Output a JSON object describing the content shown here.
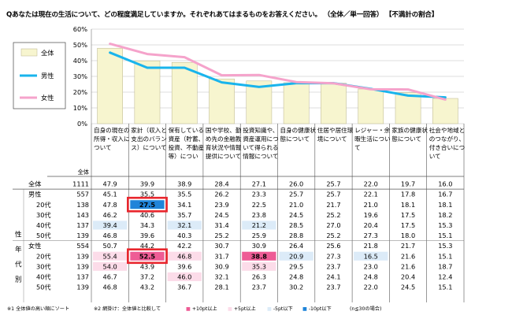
{
  "title": "Qあなたは現在の生活について、どの程度満足していますか。それぞれあてはまるものをお答えください。 （全体／単一回答） 【不満計の割合】",
  "chart_data": {
    "type": "line",
    "title": "",
    "ylim": [
      0,
      60
    ],
    "y_ticks": [
      "0%",
      "10%",
      "20%",
      "30%",
      "40%",
      "50%",
      "60%"
    ],
    "grid": true,
    "legend_position": "top-left",
    "categories": [
      "自身の現在の所得・収入について",
      "家計（収入と支出のバランス）について",
      "保有している資産（貯蓄、投資、不動産等）につい",
      "国や学校、勤め先の金融教育状況や情報提供について",
      "投資知識や、資産運用について得られる情報について",
      "自身の健康状態について",
      "住居や居住環境について",
      "レジャー・余暇生活について",
      "家族の健康状態について",
      "社会や地域とのつながり、付き合いについて"
    ],
    "series": [
      {
        "name": "全体",
        "kind": "bar",
        "color": "#f7f5cf",
        "values": [
          47.9,
          39.9,
          38.9,
          28.4,
          27.1,
          26.0,
          25.7,
          22.0,
          19.7,
          16.0
        ]
      },
      {
        "name": "男性",
        "kind": "line",
        "color": "#19b4ec",
        "values": [
          45.1,
          35.5,
          35.5,
          26.2,
          23.3,
          25.7,
          25.7,
          22.1,
          17.8,
          16.7
        ]
      },
      {
        "name": "女性",
        "kind": "line",
        "color": "#f5a3cb",
        "values": [
          50.7,
          44.2,
          42.2,
          30.7,
          30.9,
          26.4,
          25.6,
          21.8,
          21.7,
          15.3
        ]
      }
    ],
    "table": {
      "n_label": "全体",
      "group_labels": [
        "性",
        "年",
        "代",
        "別"
      ],
      "rows": [
        {
          "label": "全体",
          "sub": "",
          "n": 1111,
          "values": [
            47.9,
            39.9,
            38.9,
            28.4,
            27.1,
            26.0,
            25.7,
            22.0,
            19.7,
            16.0
          ],
          "marks": [
            "",
            "",
            "",
            "",
            "",
            "",
            "",
            "",
            "",
            ""
          ]
        },
        {
          "label": "男性",
          "sub": "",
          "n": 557,
          "values": [
            45.1,
            35.5,
            35.5,
            26.2,
            23.3,
            25.7,
            25.7,
            22.1,
            17.8,
            16.7
          ],
          "marks": [
            "",
            "",
            "",
            "",
            "",
            "",
            "",
            "",
            "",
            ""
          ]
        },
        {
          "label": "",
          "sub": "20代",
          "n": 138,
          "values": [
            47.8,
            27.5,
            34.1,
            23.9,
            22.5,
            21.0,
            21.7,
            21.0,
            18.1,
            18.1
          ],
          "marks": [
            "",
            "b10",
            "",
            "",
            "",
            "",
            "",
            "",
            "",
            ""
          ]
        },
        {
          "label": "",
          "sub": "30代",
          "n": 143,
          "values": [
            46.2,
            40.6,
            35.7,
            24.5,
            23.8,
            24.5,
            25.2,
            19.6,
            17.5,
            18.2
          ],
          "marks": [
            "",
            "",
            "",
            "",
            "",
            "",
            "",
            "",
            "",
            ""
          ]
        },
        {
          "label": "",
          "sub": "40代",
          "n": 137,
          "values": [
            39.4,
            34.3,
            32.1,
            31.4,
            21.2,
            28.5,
            27.0,
            20.4,
            17.5,
            15.3
          ],
          "marks": [
            "b5",
            "",
            "b5",
            "",
            "b5",
            "",
            "",
            "",
            "",
            ""
          ]
        },
        {
          "label": "",
          "sub": "50代",
          "n": 139,
          "values": [
            46.8,
            39.6,
            40.3,
            25.2,
            25.9,
            28.8,
            25.2,
            27.3,
            18.0,
            15.1
          ],
          "marks": [
            "",
            "",
            "",
            "",
            "",
            "",
            "",
            "",
            "",
            ""
          ]
        },
        {
          "label": "女性",
          "sub": "",
          "n": 554,
          "values": [
            50.7,
            44.2,
            42.2,
            30.7,
            30.9,
            26.4,
            25.6,
            21.8,
            21.7,
            15.3
          ],
          "marks": [
            "",
            "",
            "",
            "",
            "",
            "",
            "",
            "",
            "",
            ""
          ]
        },
        {
          "label": "",
          "sub": "20代",
          "n": 139,
          "values": [
            55.4,
            52.5,
            46.8,
            31.7,
            38.8,
            20.9,
            27.3,
            16.5,
            21.6,
            15.1
          ],
          "marks": [
            "p5",
            "p10",
            "p5",
            "",
            "p10",
            "b5",
            "",
            "b5",
            "",
            ""
          ]
        },
        {
          "label": "",
          "sub": "30代",
          "n": 139,
          "values": [
            54.0,
            43.9,
            39.6,
            30.9,
            35.3,
            29.5,
            23.7,
            23.0,
            21.6,
            18.7
          ],
          "marks": [
            "p5",
            "",
            "",
            "",
            "p5",
            "",
            "",
            "",
            "",
            ""
          ]
        },
        {
          "label": "",
          "sub": "40代",
          "n": 137,
          "values": [
            46.7,
            37.2,
            46.0,
            32.1,
            26.3,
            24.8,
            24.1,
            24.8,
            20.4,
            12.4
          ],
          "marks": [
            "",
            "",
            "p5",
            "",
            "",
            "",
            "",
            "",
            "",
            ""
          ]
        },
        {
          "label": "",
          "sub": "50代",
          "n": 139,
          "values": [
            46.8,
            43.2,
            36.7,
            28.1,
            23.7,
            30.2,
            23.7,
            22.0,
            24.5,
            15.1
          ],
          "marks": [
            "",
            "",
            "",
            "",
            "",
            "",
            "",
            "",
            "",
            ""
          ]
        }
      ],
      "highlight_boxes": [
        {
          "row": 2,
          "col": 1
        },
        {
          "row": 7,
          "col": 1
        }
      ]
    },
    "mark_colors": {
      "p10": "#ee5c95",
      "p5": "#fcdce9",
      "b5": "#dcebf8",
      "b10": "#1f84d9"
    },
    "highlight_color": "#e8262d"
  },
  "footnotes": {
    "n1_symbol": "※1",
    "n1_text": "全体値の高い順にソート",
    "n2_symbol": "※2",
    "n2_text": "網掛け：全体値と比較して",
    "legend_items": [
      "+10pt以上",
      "+5pt以上",
      "-5pt以下",
      "-10pt以下"
    ],
    "legend_symbols": [
      "■",
      "■",
      "■",
      "■"
    ],
    "n_note": "(n≦30の場合)"
  }
}
